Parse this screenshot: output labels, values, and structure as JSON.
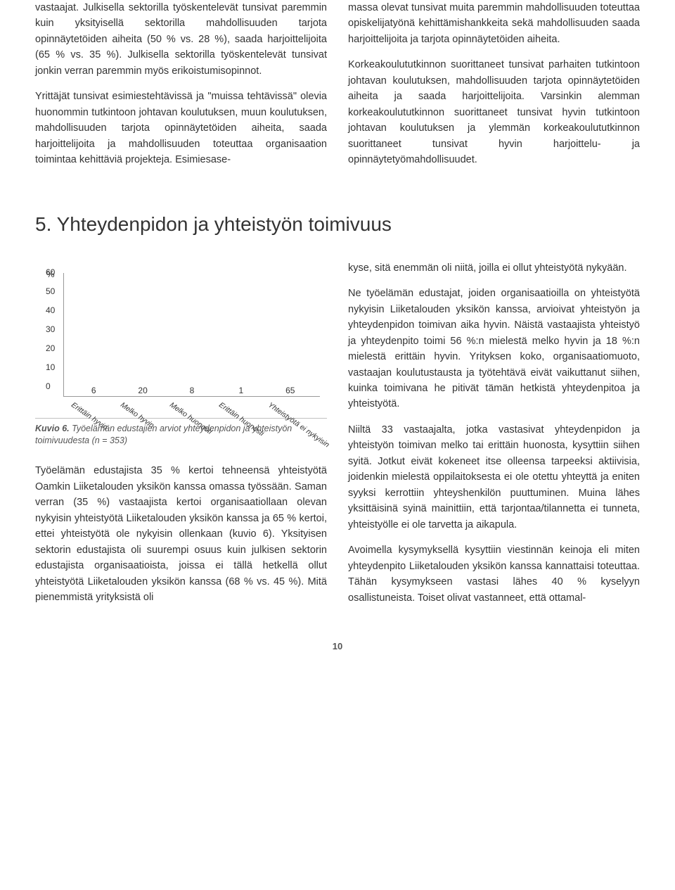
{
  "top": {
    "left": {
      "p1": "vastaajat. Julkisella sektorilla työskentelevät tunsivat paremmin kuin yksityisellä sektorilla mahdollisuuden tarjota opinnäytetöiden aiheita (50 % vs. 28 %), saada harjoittelijoita (65 % vs. 35 %). Julkisella sektorilla työskentelevät tunsivat jonkin verran paremmin myös erikoistumisopinnot.",
      "p2": "Yrittäjät tunsivat esimiestehtävissä ja \"muissa tehtävissä\" olevia huonommin tutkintoon johtavan koulutuksen, muun koulutuksen, mahdollisuuden tarjota opinnäytetöiden aiheita, saada harjoittelijoita ja mahdollisuuden toteuttaa organisaation toimintaa kehittäviä projekteja. Esimiesase-"
    },
    "right": {
      "p1": "massa olevat tunsivat muita paremmin mahdollisuuden toteuttaa opiskelijatyönä kehittämishankkeita sekä mahdollisuuden saada harjoittelijoita ja tarjota opinnäytetöiden aiheita.",
      "p2": "Korkeakoulututkinnon suorittaneet tunsivat parhaiten tutkintoon johtavan koulutuksen, mahdollisuuden tarjota opinnäytetöiden aiheita ja saada harjoittelijoita. Varsinkin alemman korkeakoulututkinnon suorittaneet tunsivat hyvin tutkintoon johtavan koulutuksen ja ylemmän korkeakoulututkinnon suorittaneet tunsivat hyvin harjoittelu- ja opinnäytetyömahdollisuudet."
    }
  },
  "heading": "5. Yhteydenpidon ja yhteistyön toimivuus",
  "chart": {
    "type": "bar",
    "y_unit": "%",
    "ylim": [
      0,
      65
    ],
    "yticks": [
      0,
      10,
      20,
      30,
      40,
      50,
      60
    ],
    "categories": [
      "Erittäin hyvin",
      "Melko hyvin",
      "Melko huonosti",
      "Erittäin huonosti",
      "Yhteistyötä ei nykyisin"
    ],
    "values": [
      6,
      20,
      8,
      1,
      65
    ],
    "bar_color": "#6ba9c7",
    "axis_color": "#999999",
    "label_color": "#333333",
    "value_fontsize": 12,
    "tick_fontsize": 12,
    "xlabel_fontsize": 10.5,
    "background_color": "#ffffff"
  },
  "caption": "Kuvio 6. Työelämän edustajien arviot yhteydenpidon ja yhteistyön toimivuudesta (n = 353)",
  "lower": {
    "left": {
      "p1": "Työelämän edustajista 35 % kertoi tehneensä yhteistyötä Oamkin Liiketalouden yksikön kanssa omassa työssään. Saman verran (35 %) vastaajista kertoi organisaatiollaan olevan nykyisin yhteistyötä Liiketalouden yksikön kanssa ja 65 % kertoi, ettei yhteistyötä ole nykyisin ollenkaan (kuvio 6). Yksityisen sektorin edustajista oli suurempi osuus kuin julkisen sektorin edustajista organisaatioista, joissa ei tällä hetkellä ollut yhteistyötä Liiketalouden yksikön kanssa (68 % vs. 45 %). Mitä pienemmistä yrityksistä oli"
    },
    "right": {
      "p1": "kyse, sitä enemmän oli niitä, joilla ei ollut yhteistyötä nykyään.",
      "p2": "Ne työelämän edustajat, joiden organisaatioilla on yhteistyötä nykyisin Liiketalouden yksikön kanssa, arvioivat yhteistyön ja yhteydenpidon toimivan aika hyvin. Näistä vastaajista yhteistyö ja yhteydenpito toimi 56 %:n mielestä melko hyvin ja 18 %:n mielestä erittäin hyvin. Yrityksen koko, organisaatiomuoto, vastaajan koulutustausta ja työtehtävä eivät vaikuttanut siihen, kuinka toimivana he pitivät tämän hetkistä yhteydenpitoa ja yhteistyötä.",
      "p3": "Niiltä 33 vastaajalta, jotka vastasivat yhteydenpidon ja yhteistyön toimivan melko tai erittäin huonosta, kysyttiin siihen syitä. Jotkut eivät kokeneet itse olleensa tarpeeksi aktiivisia, joidenkin mielestä oppilaitoksesta ei ole otettu yhteyttä ja eniten syyksi kerrottiin yhteyshenkilön puuttuminen. Muina lähes yksittäisinä syinä mainittiin, että tarjontaa/tilannetta ei tunneta, yhteistyölle ei ole tarvetta ja aikapula.",
      "p4": "Avoimella kysymyksellä kysyttiin viestinnän keinoja eli miten yhteydenpito Liiketalouden yksikön kanssa kannattaisi toteuttaa. Tähän kysymykseen vastasi lähes 40 % kyselyyn osallistuneista. Toiset olivat vastanneet, että ottamal-"
    }
  },
  "page_number": "10"
}
